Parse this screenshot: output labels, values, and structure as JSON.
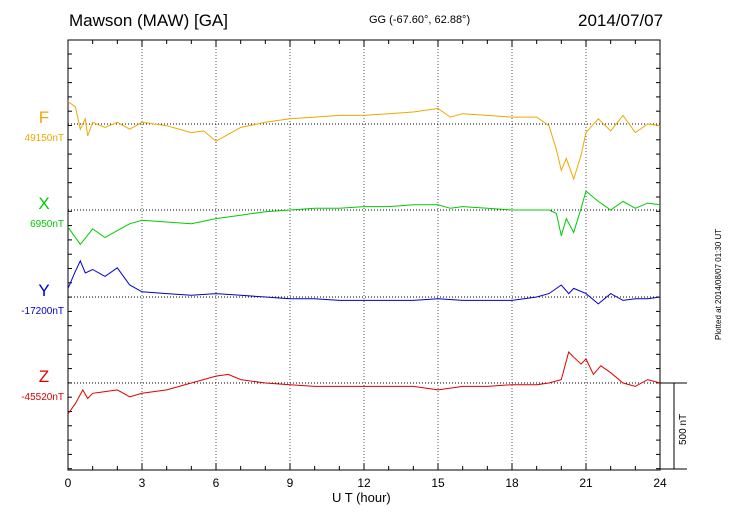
{
  "header": {
    "station": "Mawson (MAW)  [GA]",
    "coords": "GG (-67.60°,  62.88°)",
    "date": "2014/07/07"
  },
  "side_note": "Plotted at 2014/08/07 01:30 UT",
  "scale_bar_label": "500 nT",
  "chart_data": {
    "type": "line",
    "xlabel": "U T (hour)",
    "x_ticks": [
      0,
      3,
      6,
      9,
      12,
      15,
      18,
      21,
      24
    ],
    "xlim": [
      0,
      24
    ],
    "scale_bar_nT": 500,
    "grid": true,
    "series": [
      {
        "name": "F",
        "baseline_label": "49150nT",
        "baseline": 49150,
        "color": "#f0a800",
        "x": [
          0,
          0.3,
          0.5,
          0.7,
          0.8,
          1,
          1.5,
          2,
          2.5,
          3,
          4,
          5,
          5.5,
          6,
          6.5,
          7,
          8,
          9,
          10,
          11,
          12,
          13,
          14,
          15,
          15.5,
          16,
          17,
          18,
          19,
          19.5,
          19.8,
          20,
          20.2,
          20.5,
          20.8,
          21,
          21.5,
          22,
          22.5,
          23,
          23.5,
          24
        ],
        "y": [
          49280,
          49250,
          49120,
          49180,
          49080,
          49160,
          49130,
          49160,
          49120,
          49160,
          49140,
          49100,
          49110,
          49050,
          49090,
          49130,
          49160,
          49180,
          49190,
          49200,
          49200,
          49210,
          49220,
          49240,
          49190,
          49210,
          49200,
          49190,
          49190,
          49140,
          49000,
          48880,
          48950,
          48830,
          48970,
          49100,
          49180,
          49110,
          49200,
          49100,
          49150,
          49140
        ]
      },
      {
        "name": "X",
        "baseline_label": "6950nT",
        "baseline": 6950,
        "color": "#00cc00",
        "x": [
          0,
          0.5,
          1,
          1.5,
          2,
          2.5,
          3,
          4,
          5,
          6,
          7,
          8,
          9,
          10,
          11,
          12,
          13,
          14,
          15,
          15.5,
          16,
          17,
          18,
          19,
          19.5,
          19.8,
          20,
          20.2,
          20.5,
          20.8,
          21,
          21.5,
          22,
          22.5,
          23,
          23.5,
          24
        ],
        "y": [
          6850,
          6750,
          6840,
          6790,
          6830,
          6870,
          6890,
          6880,
          6870,
          6900,
          6920,
          6940,
          6950,
          6960,
          6960,
          6970,
          6970,
          6980,
          6980,
          6960,
          6970,
          6960,
          6950,
          6950,
          6950,
          6930,
          6800,
          6900,
          6820,
          6960,
          7060,
          7000,
          6950,
          7000,
          6960,
          6990,
          6980
        ]
      },
      {
        "name": "Y",
        "baseline_label": "-17200nT",
        "baseline": -17200,
        "color": "#0000cc",
        "x": [
          0,
          0.3,
          0.5,
          0.7,
          1,
          1.5,
          2,
          2.5,
          3,
          4,
          5,
          6,
          7,
          8,
          9,
          10,
          11,
          12,
          13,
          14,
          15,
          16,
          17,
          18,
          19,
          19.5,
          20,
          20.3,
          20.5,
          21,
          21.5,
          22,
          22.5,
          23,
          23.5,
          24
        ],
        "y": [
          -17150,
          -17050,
          -16990,
          -17060,
          -17040,
          -17080,
          -17030,
          -17130,
          -17170,
          -17180,
          -17190,
          -17180,
          -17190,
          -17200,
          -17210,
          -17210,
          -17220,
          -17220,
          -17220,
          -17220,
          -17210,
          -17220,
          -17220,
          -17220,
          -17200,
          -17180,
          -17130,
          -17180,
          -17150,
          -17180,
          -17240,
          -17180,
          -17220,
          -17210,
          -17210,
          -17200
        ]
      },
      {
        "name": "Z",
        "baseline_label": "-45520nT",
        "baseline": -45520,
        "color": "#dd0000",
        "x": [
          0,
          0.3,
          0.6,
          0.8,
          1,
          1.5,
          2,
          2.5,
          3,
          4,
          5,
          6,
          6.5,
          7,
          8,
          9,
          10,
          11,
          12,
          13,
          14,
          15,
          16,
          17,
          18,
          19,
          19.5,
          20,
          20.3,
          20.5,
          20.8,
          21,
          21.3,
          21.6,
          22,
          22.5,
          23,
          23.5,
          24
        ],
        "y": [
          -45700,
          -45640,
          -45560,
          -45610,
          -45580,
          -45570,
          -45560,
          -45600,
          -45580,
          -45560,
          -45520,
          -45480,
          -45470,
          -45500,
          -45520,
          -45530,
          -45540,
          -45540,
          -45540,
          -45540,
          -45540,
          -45560,
          -45540,
          -45540,
          -45530,
          -45530,
          -45520,
          -45500,
          -45340,
          -45370,
          -45410,
          -45380,
          -45470,
          -45420,
          -45460,
          -45520,
          -45540,
          -45500,
          -45520
        ]
      }
    ]
  }
}
